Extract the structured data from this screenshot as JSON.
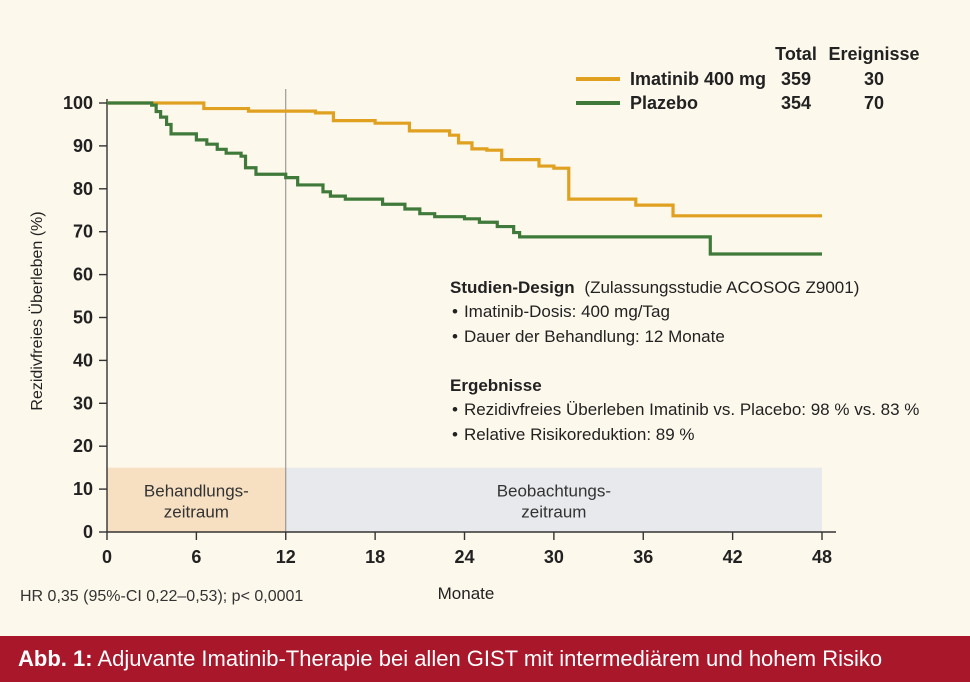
{
  "chart_data": {
    "type": "line",
    "step": true,
    "xlabel": "Monate",
    "ylabel": "Rezidivfreies Überleben (%)",
    "xlim": [
      0,
      48
    ],
    "ylim": [
      0,
      100
    ],
    "xticks": [
      0,
      6,
      12,
      18,
      24,
      30,
      36,
      42,
      48
    ],
    "yticks": [
      0,
      10,
      20,
      30,
      40,
      50,
      60,
      70,
      80,
      90,
      100
    ],
    "colors": {
      "imatinib": "#e0a020",
      "placebo": "#3f7a3a",
      "treatment_band": "#f7e0c2",
      "observation_band": "#e7e9ec"
    },
    "legend": {
      "placement": "top-right",
      "headers": [
        "Total",
        "Ereignisse"
      ],
      "entries": [
        {
          "label": "Imatinib 400 mg",
          "total": "359",
          "events": "30"
        },
        {
          "label": "Plazebo",
          "total": "354",
          "events": "70"
        }
      ]
    },
    "series": [
      {
        "name": "Imatinib 400 mg",
        "color": "#e0a020",
        "points": [
          [
            0,
            100
          ],
          [
            3.5,
            100
          ],
          [
            6.5,
            98.7
          ],
          [
            9.5,
            98.1
          ],
          [
            14,
            97.7
          ],
          [
            15.2,
            95.9
          ],
          [
            18,
            95.3
          ],
          [
            20.3,
            93.5
          ],
          [
            23,
            92.5
          ],
          [
            23.6,
            90.7
          ],
          [
            24.5,
            89.3
          ],
          [
            25.5,
            89.0
          ],
          [
            26.5,
            86.8
          ],
          [
            29,
            85.3
          ],
          [
            30,
            84.8
          ],
          [
            31,
            77.6
          ],
          [
            35.5,
            76.2
          ],
          [
            38,
            73.7
          ],
          [
            48,
            73.7
          ]
        ]
      },
      {
        "name": "Plazebo",
        "color": "#3f7a3a",
        "points": [
          [
            0,
            100
          ],
          [
            3,
            99.5
          ],
          [
            3.3,
            98
          ],
          [
            3.6,
            96.7
          ],
          [
            4,
            95
          ],
          [
            4.3,
            92.8
          ],
          [
            6,
            91.4
          ],
          [
            6.7,
            90.4
          ],
          [
            7.4,
            89.2
          ],
          [
            8,
            88.3
          ],
          [
            9,
            87.6
          ],
          [
            9.3,
            84.9
          ],
          [
            10,
            83.4
          ],
          [
            12,
            82.6
          ],
          [
            12.8,
            80.9
          ],
          [
            14.5,
            79.3
          ],
          [
            15,
            78.3
          ],
          [
            16,
            77.6
          ],
          [
            18.5,
            76.4
          ],
          [
            20,
            75.3
          ],
          [
            21,
            74.2
          ],
          [
            22,
            73.5
          ],
          [
            24,
            73
          ],
          [
            25,
            72.2
          ],
          [
            26.2,
            71.2
          ],
          [
            27.3,
            69.8
          ],
          [
            27.7,
            68.8
          ],
          [
            40.5,
            64.8
          ],
          [
            48,
            64.8
          ]
        ]
      }
    ],
    "bands": [
      {
        "label": "Behandlungs-\nzeitraum",
        "x": [
          0,
          12
        ],
        "y": [
          0,
          15
        ],
        "color": "#f7e0c2"
      },
      {
        "label": "Beobachtungs-\nzeitraum",
        "x": [
          12,
          48
        ],
        "y": [
          0,
          15
        ],
        "color": "#e7e9ec"
      }
    ],
    "vline": 12,
    "annotations": {
      "design_title": "Studien-Design",
      "design_sub": "(Zulassungsstudie ACOSOG Z9001)",
      "design_items": [
        "Imatinib-Dosis: 400 mg/Tag",
        "Dauer der Behandlung: 12 Monate"
      ],
      "results_title": "Ergebnisse",
      "results_items": [
        "Rezidivfreies Überleben Imatinib vs. Placebo: 98 % vs. 83 %",
        "Relative Risikoreduktion: 89 %"
      ]
    }
  },
  "footnote": "HR 0,35 (95%-CI 0,22–0,53); p< 0,0001",
  "caption": {
    "label": "Abb. 1:",
    "text": " Adjuvante Imatinib-Therapie bei allen GIST mit intermediärem und hohem Risiko"
  }
}
